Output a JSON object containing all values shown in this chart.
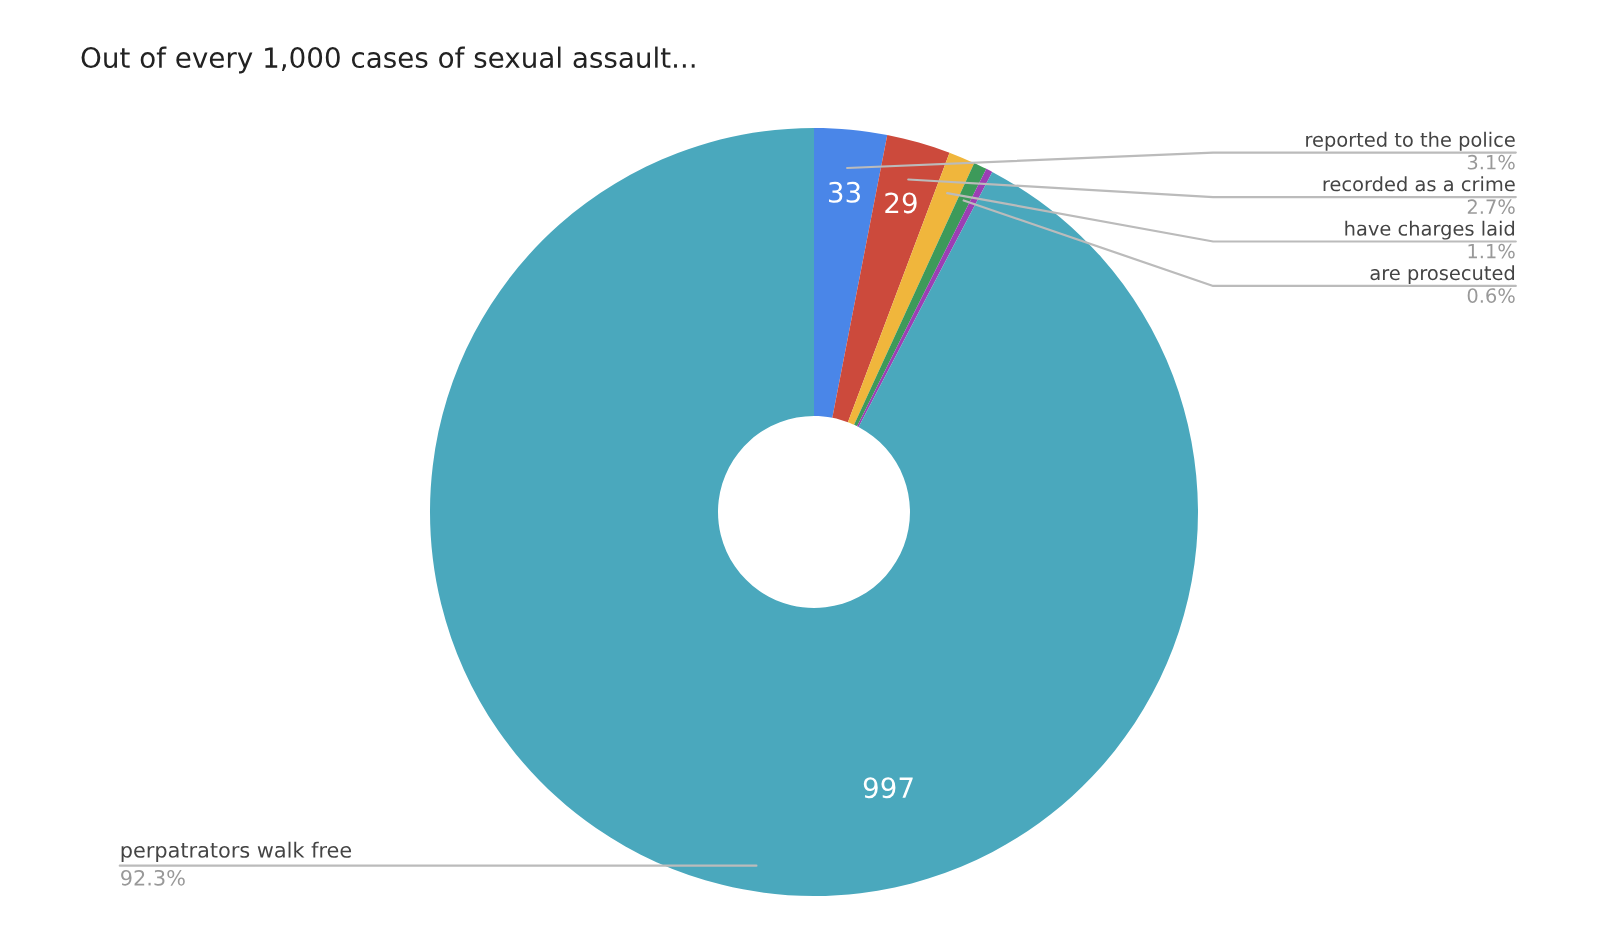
{
  "chart_data": {
    "type": "donut",
    "title": "Out of every 1,000 cases of sexual assault...",
    "categories": [
      "reported to the police",
      "recorded as a crime",
      "have charges laid",
      "are prosecuted",
      null,
      "perpatrators walk free"
    ],
    "values": [
      33,
      29,
      12,
      6,
      3,
      997
    ],
    "colors": [
      "#4a86e8",
      "#cc4a3c",
      "#f0b63c",
      "#3d9a5a",
      "#9c3fb4",
      "#4aa8bd"
    ],
    "value_labels": [
      "33",
      "29",
      null,
      null,
      null,
      "997"
    ],
    "annotations": [
      "3.1%",
      "2.7%",
      "1.1%",
      "0.6%",
      "92.3%"
    ]
  }
}
